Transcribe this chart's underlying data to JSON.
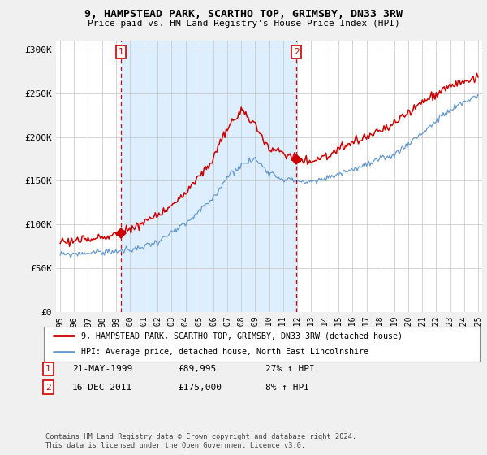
{
  "title": "9, HAMPSTEAD PARK, SCARTHO TOP, GRIMSBY, DN33 3RW",
  "subtitle": "Price paid vs. HM Land Registry's House Price Index (HPI)",
  "ylabel_ticks": [
    "£0",
    "£50K",
    "£100K",
    "£150K",
    "£200K",
    "£250K",
    "£300K"
  ],
  "ylabel_values": [
    0,
    50000,
    100000,
    150000,
    200000,
    250000,
    300000
  ],
  "ylim": [
    0,
    310000
  ],
  "sale1_date": "21-MAY-1999",
  "sale1_price": 89995,
  "sale1_hpi_text": "27% ↑ HPI",
  "sale1_label": "1",
  "sale1_year": 1999.38,
  "sale2_date": "16-DEC-2011",
  "sale2_price": 175000,
  "sale2_hpi_text": "8% ↑ HPI",
  "sale2_label": "2",
  "sale2_year": 2011.96,
  "legend_line1": "9, HAMPSTEAD PARK, SCARTHO TOP, GRIMSBY, DN33 3RW (detached house)",
  "legend_line2": "HPI: Average price, detached house, North East Lincolnshire",
  "footnote": "Contains HM Land Registry data © Crown copyright and database right 2024.\nThis data is licensed under the Open Government Licence v3.0.",
  "line_color_red": "#cc0000",
  "line_color_blue": "#6699cc",
  "shade_color": "#ddeeff",
  "bg_color": "#f0f0f0",
  "plot_bg": "#ffffff",
  "grid_color": "#cccccc",
  "vline_color": "#cc0000",
  "xlim_left": 1994.7,
  "xlim_right": 2025.3,
  "hpi_anchors_x": [
    0,
    30,
    60,
    84,
    108,
    132,
    144,
    156,
    168,
    180,
    192,
    204,
    216,
    228,
    240,
    264,
    288,
    312,
    330,
    348,
    360
  ],
  "hpi_anchors_y": [
    65000,
    68000,
    70000,
    80000,
    100000,
    130000,
    155000,
    168000,
    175000,
    160000,
    152000,
    150000,
    148000,
    152000,
    158000,
    168000,
    180000,
    205000,
    225000,
    240000,
    248000
  ],
  "red_anchors_x": [
    0,
    30,
    52,
    60,
    84,
    108,
    132,
    144,
    156,
    168,
    180,
    192,
    204,
    216,
    228,
    240,
    264,
    288,
    312,
    330,
    348,
    360
  ],
  "red_anchors_y": [
    80000,
    83000,
    89995,
    95000,
    110000,
    135000,
    175000,
    210000,
    230000,
    215000,
    185000,
    183000,
    175000,
    172000,
    178000,
    185000,
    200000,
    215000,
    240000,
    255000,
    265000,
    268000
  ],
  "noise_hpi": 1800,
  "noise_red": 2500,
  "random_seed": 99
}
